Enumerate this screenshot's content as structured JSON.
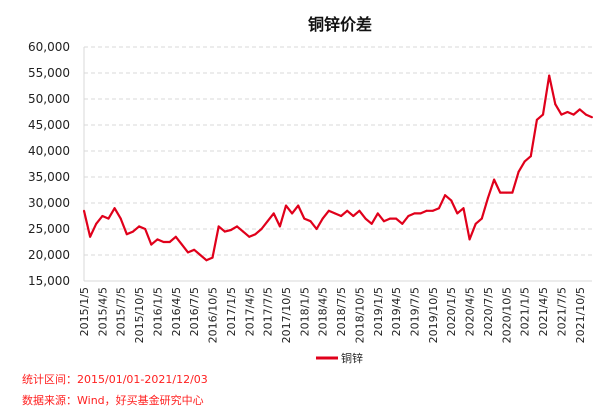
{
  "chart_data": {
    "type": "line",
    "title": "铜锌价差",
    "ylim": [
      15000,
      60000
    ],
    "yticks": [
      15000,
      20000,
      25000,
      30000,
      35000,
      40000,
      45000,
      50000,
      55000,
      60000
    ],
    "ytick_labels": [
      "15,000",
      "20,000",
      "25,000",
      "30,000",
      "35,000",
      "40,000",
      "45,000",
      "50,000",
      "55,000",
      "60,000"
    ],
    "grid": true,
    "legend_position": "bottom",
    "xtick_labels": [
      "2015/1/5",
      "2015/4/5",
      "2015/7/5",
      "2015/10/5",
      "2016/1/5",
      "2016/4/5",
      "2016/7/5",
      "2016/10/5",
      "2017/1/5",
      "2017/4/5",
      "2017/7/5",
      "2017/10/5",
      "2018/1/5",
      "2018/4/5",
      "2018/7/5",
      "2018/10/5",
      "2019/1/5",
      "2019/4/5",
      "2019/7/5",
      "2019/10/5",
      "2020/1/5",
      "2020/4/5",
      "2020/7/5",
      "2020/10/5",
      "2021/1/5",
      "2021/4/5",
      "2021/7/5",
      "2021/10/5"
    ],
    "series": [
      {
        "name": "铜锌",
        "color": "#e0001b",
        "start": "2015-01",
        "step": "month",
        "values": [
          28500,
          23500,
          26000,
          27500,
          27000,
          29000,
          27000,
          24000,
          24500,
          25500,
          25000,
          22000,
          23000,
          22500,
          22500,
          23500,
          22000,
          20500,
          21000,
          20000,
          19000,
          19500,
          25500,
          24500,
          24800,
          25500,
          24500,
          23500,
          24000,
          25000,
          26500,
          28000,
          25500,
          29500,
          28000,
          29500,
          27000,
          26500,
          25000,
          27000,
          28500,
          28000,
          27500,
          28500,
          27500,
          28500,
          27000,
          26000,
          28000,
          26500,
          27000,
          27000,
          26000,
          27500,
          28000,
          28000,
          28500,
          28500,
          29000,
          31500,
          30500,
          28000,
          29000,
          23000,
          26000,
          27000,
          31000,
          34500,
          32000,
          32000,
          32000,
          36000,
          38000,
          39000,
          46000,
          47000,
          54500,
          49000,
          47000,
          47500,
          47000,
          48000,
          47000,
          46500
        ]
      }
    ]
  },
  "footer": {
    "range": "统计区间：2015/01/01-2021/12/03",
    "source": "数据来源：Wind，好买基金研究中心"
  }
}
